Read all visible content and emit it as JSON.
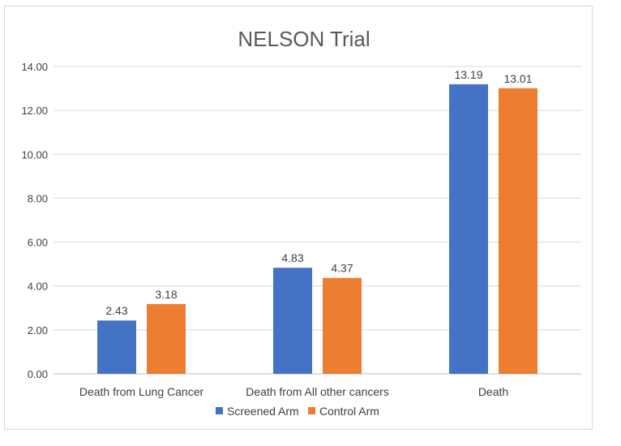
{
  "chart_data": {
    "type": "bar",
    "title": "NELSON Trial",
    "categories": [
      "Death from Lung Cancer",
      "Death from All other cancers",
      "Death"
    ],
    "series": [
      {
        "name": "Screened Arm",
        "color": "#4472C4",
        "values": [
          2.43,
          4.83,
          13.19
        ]
      },
      {
        "name": "Control Arm",
        "color": "#ED7D31",
        "values": [
          3.18,
          4.37,
          13.01
        ]
      }
    ],
    "ylim": [
      0,
      14
    ],
    "yticks": [
      "0.00",
      "2.00",
      "4.00",
      "6.00",
      "8.00",
      "10.00",
      "12.00",
      "14.00"
    ],
    "grid": true,
    "legend": "bottom",
    "data_labels": true
  }
}
